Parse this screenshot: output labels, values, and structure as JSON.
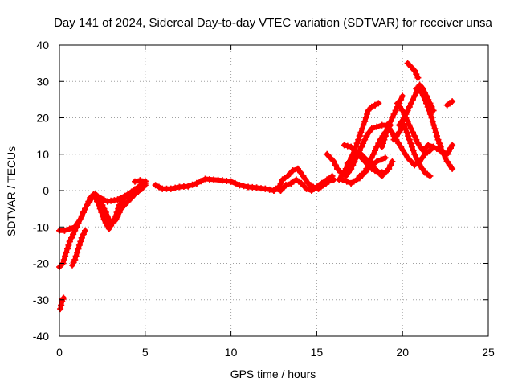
{
  "chart_data": {
    "type": "scatter",
    "title": "Day 141 of 2024, Sidereal Day-to-day VTEC variation (SDTVAR) for receiver unsa",
    "xlabel": "GPS time / hours",
    "ylabel": "SDTVAR / TECUs",
    "xlim": [
      0,
      25
    ],
    "ylim": [
      -40,
      40
    ],
    "xticks": [
      0,
      5,
      10,
      15,
      20,
      25
    ],
    "yticks": [
      -40,
      -30,
      -20,
      -10,
      0,
      10,
      20,
      30,
      40
    ],
    "grid": true,
    "marker": "+",
    "color": "#ff0000",
    "series": [
      {
        "name": "trace-1",
        "x": [
          0.0,
          0.3,
          0.6,
          0.9,
          1.2,
          1.5,
          1.8,
          2.0
        ],
        "y": [
          -11,
          -11,
          -10.5,
          -10,
          -8,
          -5,
          -2,
          -1
        ]
      },
      {
        "name": "trace-2",
        "x": [
          0.0,
          0.2,
          0.4,
          0.6,
          0.8,
          1.0,
          1.3,
          1.6,
          1.9,
          2.1
        ],
        "y": [
          -21,
          -20,
          -17,
          -14,
          -12,
          -10,
          -7,
          -4,
          -2,
          -1
        ]
      },
      {
        "name": "trace-3",
        "x": [
          0.75,
          0.9,
          1.1,
          1.3,
          1.5
        ],
        "y": [
          -20.5,
          -19,
          -16,
          -13,
          -11
        ]
      },
      {
        "name": "trace-4",
        "x": [
          0.05,
          0.1,
          0.15,
          0.2,
          0.25
        ],
        "y": [
          -32.5,
          -31.5,
          -30.5,
          -29.8,
          -29.5
        ]
      },
      {
        "name": "trace-5",
        "x": [
          1.8,
          2.1,
          2.4,
          2.7,
          3.0,
          3.3,
          3.6,
          4.0,
          4.4,
          4.8,
          5.0
        ],
        "y": [
          -2,
          -1,
          -3,
          -6,
          -9,
          -8,
          -5,
          -3,
          -1,
          0.5,
          1.5
        ]
      },
      {
        "name": "trace-6",
        "x": [
          2.0,
          2.3,
          2.6,
          2.9,
          3.2,
          3.5,
          3.8,
          4.2,
          4.6,
          4.9,
          5.0
        ],
        "y": [
          -1,
          -4,
          -8,
          -10.5,
          -8,
          -4,
          -2,
          -1,
          0,
          1,
          2
        ]
      },
      {
        "name": "trace-7",
        "x": [
          2.2,
          2.8,
          3.4,
          4.0,
          4.6,
          5.0
        ],
        "y": [
          -1.5,
          -3,
          -2.5,
          -1,
          1,
          2.5
        ]
      },
      {
        "name": "trace-8",
        "x": [
          4.4,
          4.7,
          5.0
        ],
        "y": [
          2.5,
          2.8,
          2.6
        ]
      },
      {
        "name": "trace-9",
        "x": [
          5.6,
          6.0,
          6.5,
          7.0,
          7.5,
          8.0,
          8.5,
          9.0,
          9.5,
          10.0,
          10.5,
          11.0,
          11.5,
          12.0,
          12.5
        ],
        "y": [
          1.5,
          0.5,
          0.5,
          1,
          1.2,
          2,
          3.2,
          3,
          2.8,
          2.5,
          1.5,
          1,
          0.8,
          0.5,
          0
        ]
      },
      {
        "name": "trace-10",
        "x": [
          12.5,
          12.8,
          13.0,
          13.3,
          13.6,
          13.9,
          14.2,
          14.5,
          14.8,
          15.1,
          15.4,
          15.7,
          16.0
        ],
        "y": [
          0,
          1,
          3,
          4,
          5.5,
          6,
          4,
          2,
          1,
          0.5,
          1.5,
          2.5,
          3
        ]
      },
      {
        "name": "trace-11",
        "x": [
          12.6,
          12.9,
          13.2,
          13.5,
          13.8,
          14.1,
          14.4,
          14.7,
          15.0,
          15.3,
          15.6,
          15.9
        ],
        "y": [
          0.5,
          0,
          1.5,
          2,
          3,
          2,
          0.5,
          0,
          1,
          2,
          3,
          4
        ]
      },
      {
        "name": "trace-12",
        "x": [
          15.6,
          15.8,
          16.0,
          16.2,
          16.4
        ],
        "y": [
          10,
          9,
          8,
          6,
          5
        ]
      },
      {
        "name": "trace-13",
        "x": [
          16.3,
          16.6,
          16.9,
          17.2,
          17.5,
          17.8,
          18.0,
          18.2,
          18.4,
          18.6
        ],
        "y": [
          3,
          5,
          8,
          11,
          15,
          19,
          22,
          23,
          23.5,
          24
        ]
      },
      {
        "name": "trace-14",
        "x": [
          16.4,
          16.7,
          17.0,
          17.3,
          17.6,
          17.9,
          18.2,
          18.5,
          18.8,
          19.1
        ],
        "y": [
          5,
          4,
          6,
          9,
          12,
          15,
          17,
          17.5,
          18,
          18
        ]
      },
      {
        "name": "trace-15",
        "x": [
          16.6,
          17.0,
          17.4,
          17.8,
          18.2,
          18.6,
          19.0,
          19.2,
          19.4
        ],
        "y": [
          12.5,
          12,
          10,
          8,
          6,
          5,
          5,
          6,
          8
        ]
      },
      {
        "name": "trace-16",
        "x": [
          16.8,
          17.2,
          17.6,
          18.0,
          18.4,
          18.8
        ],
        "y": [
          7.5,
          9,
          10,
          8,
          6,
          4
        ]
      },
      {
        "name": "trace-17",
        "x": [
          17.5,
          17.8,
          18.1,
          18.4,
          18.7,
          19.0,
          19.3
        ],
        "y": [
          4,
          5,
          8,
          11,
          14,
          16,
          18
        ]
      },
      {
        "name": "trace-18",
        "x": [
          18.8,
          19.0,
          19.2,
          19.4,
          19.6,
          19.8,
          20.0
        ],
        "y": [
          12,
          15,
          18,
          20,
          22,
          24,
          26
        ]
      },
      {
        "name": "trace-19",
        "x": [
          19.1,
          19.5,
          19.9,
          20.3,
          20.7,
          21.0,
          21.3,
          21.6,
          21.8
        ],
        "y": [
          18,
          15,
          12,
          9,
          7,
          8,
          10,
          11,
          12
        ]
      },
      {
        "name": "trace-20",
        "x": [
          19.8,
          20.1,
          20.4,
          20.7,
          21.0,
          21.2,
          21.4,
          21.6,
          21.8
        ],
        "y": [
          18,
          20,
          23,
          26,
          29,
          28,
          26,
          24,
          22
        ]
      },
      {
        "name": "trace-21",
        "x": [
          20.3,
          20.5,
          20.7,
          20.9
        ],
        "y": [
          35,
          34,
          33,
          31
        ]
      },
      {
        "name": "trace-22",
        "x": [
          19.7,
          20.0,
          20.3,
          20.6,
          20.9,
          21.2,
          21.5,
          21.8,
          22.2,
          22.6,
          22.9
        ],
        "y": [
          24,
          22,
          19,
          16,
          13,
          11,
          12.5,
          12,
          11,
          10,
          12.5
        ]
      },
      {
        "name": "trace-23",
        "x": [
          19.5,
          19.8,
          20.1,
          20.4,
          20.7,
          21.0,
          21.3,
          21.6
        ],
        "y": [
          14,
          16,
          18,
          14,
          10,
          7,
          5,
          4
        ]
      },
      {
        "name": "trace-24",
        "x": [
          20.8,
          21.1,
          21.4,
          21.7,
          22.0,
          22.3,
          22.6,
          22.9
        ],
        "y": [
          28,
          27,
          24,
          20,
          15,
          11,
          8,
          6
        ]
      },
      {
        "name": "trace-25",
        "x": [
          22.6,
          22.75,
          22.9
        ],
        "y": [
          23.5,
          24,
          24.5
        ]
      },
      {
        "name": "trace-26",
        "x": [
          16.5,
          17.0,
          17.5,
          18.0,
          18.5,
          19.0
        ],
        "y": [
          3,
          2,
          3.5,
          6,
          8,
          9
        ]
      }
    ]
  }
}
